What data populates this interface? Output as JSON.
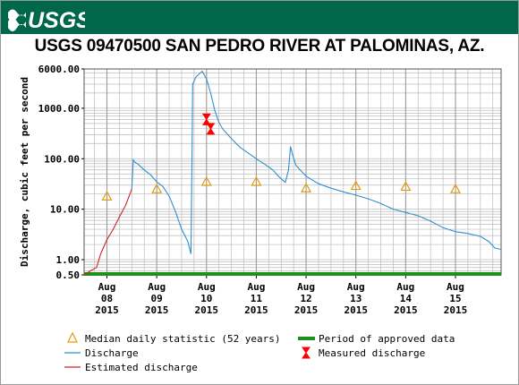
{
  "header": {
    "agency_logo_text": "USGS",
    "title": "USGS 09470500 SAN PEDRO RIVER AT PALOMINAS, AZ."
  },
  "colors": {
    "banner": "#00674a",
    "discharge": "#2f8fcf",
    "estimated": "#d42020",
    "median_marker": "#e29a10",
    "measured": "#ff0000",
    "approved_period": "#1e8f1e",
    "grid": "#bbbbbb"
  },
  "chart_data": {
    "type": "line",
    "title": "USGS 09470500 SAN PEDRO RIVER AT PALOMINAS, AZ.",
    "ylabel": "Discharge, cubic feet per second",
    "xlabel": "",
    "y_scale": "log",
    "ylim": [
      0.5,
      6000
    ],
    "xlim": [
      "2015-08-07T13:00",
      "2015-08-15T22:00"
    ],
    "y_ticks": [
      "0.50",
      "1.00",
      "10.00",
      "100.00",
      "1000.00",
      "6000.00"
    ],
    "x_ticks": [
      {
        "date": "2015-08-08",
        "label_lines": [
          "Aug",
          "08",
          "2015"
        ]
      },
      {
        "date": "2015-08-09",
        "label_lines": [
          "Aug",
          "09",
          "2015"
        ]
      },
      {
        "date": "2015-08-10",
        "label_lines": [
          "Aug",
          "10",
          "2015"
        ]
      },
      {
        "date": "2015-08-11",
        "label_lines": [
          "Aug",
          "11",
          "2015"
        ]
      },
      {
        "date": "2015-08-12",
        "label_lines": [
          "Aug",
          "12",
          "2015"
        ]
      },
      {
        "date": "2015-08-13",
        "label_lines": [
          "Aug",
          "13",
          "2015"
        ]
      },
      {
        "date": "2015-08-14",
        "label_lines": [
          "Aug",
          "14",
          "2015"
        ]
      },
      {
        "date": "2015-08-15",
        "label_lines": [
          "Aug",
          "15",
          "2015"
        ]
      }
    ],
    "grid": true,
    "series": [
      {
        "name": "Discharge",
        "points": [
          [
            "2015-08-08T12:00",
            25
          ],
          [
            "2015-08-08T12:40",
            95
          ],
          [
            "2015-08-08T13:30",
            85
          ],
          [
            "2015-08-08T15:00",
            78
          ],
          [
            "2015-08-08T18:00",
            60
          ],
          [
            "2015-08-08T21:00",
            48
          ],
          [
            "2015-08-09T00:00",
            35
          ],
          [
            "2015-08-09T03:00",
            28
          ],
          [
            "2015-08-09T06:00",
            18
          ],
          [
            "2015-08-09T09:00",
            9
          ],
          [
            "2015-08-09T12:00",
            4
          ],
          [
            "2015-08-09T15:00",
            2.3
          ],
          [
            "2015-08-09T16:30",
            1.3
          ],
          [
            "2015-08-09T17:00",
            120
          ],
          [
            "2015-08-09T17:20",
            3000
          ],
          [
            "2015-08-09T19:00",
            4200
          ],
          [
            "2015-08-09T21:00",
            5000
          ],
          [
            "2015-08-09T22:00",
            5400
          ],
          [
            "2015-08-10T00:00",
            3800
          ],
          [
            "2015-08-10T02:00",
            2000
          ],
          [
            "2015-08-10T04:00",
            900
          ],
          [
            "2015-08-10T06:00",
            520
          ],
          [
            "2015-08-10T08:00",
            380
          ],
          [
            "2015-08-10T12:00",
            250
          ],
          [
            "2015-08-10T16:00",
            170
          ],
          [
            "2015-08-10T20:00",
            130
          ],
          [
            "2015-08-11T00:00",
            100
          ],
          [
            "2015-08-11T04:00",
            78
          ],
          [
            "2015-08-11T08:00",
            60
          ],
          [
            "2015-08-11T10:00",
            48
          ],
          [
            "2015-08-11T12:00",
            40
          ],
          [
            "2015-08-11T14:00",
            34
          ],
          [
            "2015-08-11T15:30",
            60
          ],
          [
            "2015-08-11T16:30",
            175
          ],
          [
            "2015-08-11T17:30",
            120
          ],
          [
            "2015-08-11T19:00",
            75
          ],
          [
            "2015-08-11T22:00",
            55
          ],
          [
            "2015-08-12T00:00",
            45
          ],
          [
            "2015-08-12T06:00",
            32
          ],
          [
            "2015-08-12T12:00",
            26
          ],
          [
            "2015-08-12T18:00",
            22
          ],
          [
            "2015-08-13T00:00",
            19
          ],
          [
            "2015-08-13T06:00",
            16
          ],
          [
            "2015-08-13T12:00",
            13
          ],
          [
            "2015-08-13T18:00",
            10
          ],
          [
            "2015-08-14T00:00",
            8.6
          ],
          [
            "2015-08-14T06:00",
            7.4
          ],
          [
            "2015-08-14T12:00",
            5.8
          ],
          [
            "2015-08-14T18:00",
            4.3
          ],
          [
            "2015-08-15T00:00",
            3.6
          ],
          [
            "2015-08-15T06:00",
            3.3
          ],
          [
            "2015-08-15T12:00",
            2.9
          ],
          [
            "2015-08-15T16:00",
            2.3
          ],
          [
            "2015-08-15T19:00",
            1.7
          ],
          [
            "2015-08-15T22:00",
            1.6
          ]
        ]
      },
      {
        "name": "Estimated discharge",
        "points": [
          [
            "2015-08-07T13:00",
            0.5
          ],
          [
            "2015-08-07T16:00",
            0.6
          ],
          [
            "2015-08-07T19:00",
            0.7
          ],
          [
            "2015-08-07T21:00",
            1.3
          ],
          [
            "2015-08-08T00:00",
            2.5
          ],
          [
            "2015-08-08T03:00",
            4
          ],
          [
            "2015-08-08T06:00",
            7
          ],
          [
            "2015-08-08T09:00",
            12
          ],
          [
            "2015-08-08T12:00",
            25
          ]
        ]
      }
    ],
    "median_daily_statistic": {
      "name": "Median daily statistic (52 years)",
      "points": [
        [
          "2015-08-08T00:00",
          18
        ],
        [
          "2015-08-09T00:00",
          25
        ],
        [
          "2015-08-10T00:00",
          35
        ],
        [
          "2015-08-11T00:00",
          35
        ],
        [
          "2015-08-12T00:00",
          26
        ],
        [
          "2015-08-13T00:00",
          29
        ],
        [
          "2015-08-14T00:00",
          28
        ],
        [
          "2015-08-15T00:00",
          25
        ]
      ]
    },
    "measured_discharge": {
      "name": "Measured discharge",
      "points": [
        [
          "2015-08-10T00:00",
          600
        ],
        [
          "2015-08-10T02:00",
          390
        ]
      ]
    },
    "approved_period": {
      "name": "Period of approved data",
      "from": "2015-08-07T13:00",
      "to": "2015-08-15T22:00"
    },
    "legend": {
      "placement": "bottom",
      "entries": [
        "Median daily statistic (52 years)",
        "Period of approved data",
        "Discharge",
        "Measured discharge",
        "Estimated discharge"
      ]
    }
  }
}
